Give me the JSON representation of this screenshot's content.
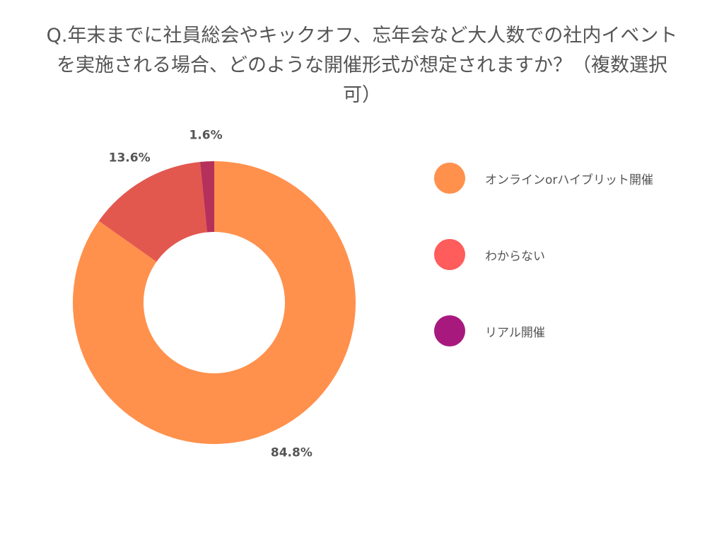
{
  "chart_data": {
    "type": "pie",
    "title": "Q.年末までに社員総会やキックオフ、忘年会など大人数での社内イベントを実施される場合、どのような開催形式が想定されますか？（複数選択可）",
    "categories": [
      "オンラインorハイブリット開催",
      "わからない",
      "リアル開催"
    ],
    "values": [
      84.8,
      13.6,
      1.6
    ],
    "value_labels": [
      "84.8%",
      "13.6%",
      "1.6%"
    ],
    "colors": [
      "#FF914D",
      "#E2584F",
      "#B5305A"
    ],
    "donut": true,
    "legend_position": "right",
    "legend_colors": [
      "#FF914D",
      "#FF5C5C",
      "#A8197E"
    ]
  }
}
